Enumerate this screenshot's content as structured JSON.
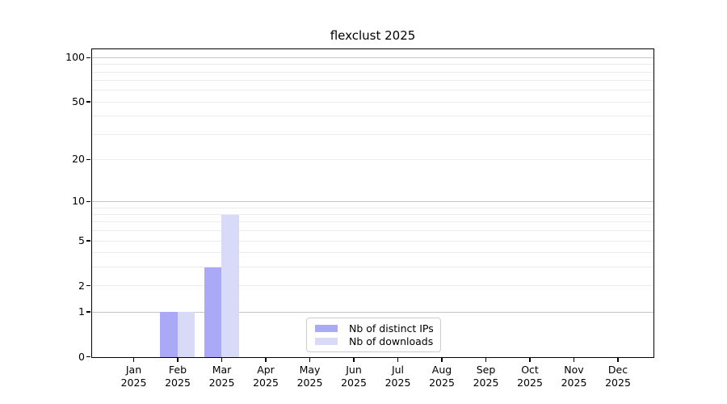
{
  "figure": {
    "title": "flexclust 2025"
  },
  "chart_data": {
    "type": "bar",
    "title": "flexclust 2025",
    "categories": [
      "Jan",
      "Feb",
      "Mar",
      "Apr",
      "May",
      "Jun",
      "Jul",
      "Aug",
      "Sep",
      "Oct",
      "Nov",
      "Dec"
    ],
    "year": "2025",
    "series": [
      {
        "name": "Nb of distinct IPs",
        "color": "#a9a9f7",
        "values": [
          0,
          1,
          3,
          0,
          0,
          0,
          0,
          0,
          0,
          0,
          0,
          0
        ]
      },
      {
        "name": "Nb of downloads",
        "color": "#d9d9f8",
        "values": [
          0,
          1,
          8,
          0,
          0,
          0,
          0,
          0,
          0,
          0,
          0,
          0
        ]
      }
    ],
    "xlabel": "",
    "ylabel": "",
    "yscale": "log1p",
    "ylim": [
      0,
      113.3
    ],
    "yticks": [
      0,
      1,
      2,
      5,
      10,
      20,
      50,
      100
    ],
    "major_gridlines": [
      1,
      10,
      100
    ],
    "minor_gridlines": [
      2,
      3,
      4,
      5,
      6,
      7,
      8,
      9,
      20,
      30,
      40,
      50,
      60,
      70,
      80,
      90
    ],
    "grid": true,
    "legend_position": "lower center inside"
  },
  "colors": {
    "background": "#ffffff",
    "axis": "#000000",
    "text": "#000000",
    "major_grid": "#c6c6c6",
    "minor_grid": "#ebebeb",
    "legend_border": "#cccccc"
  }
}
